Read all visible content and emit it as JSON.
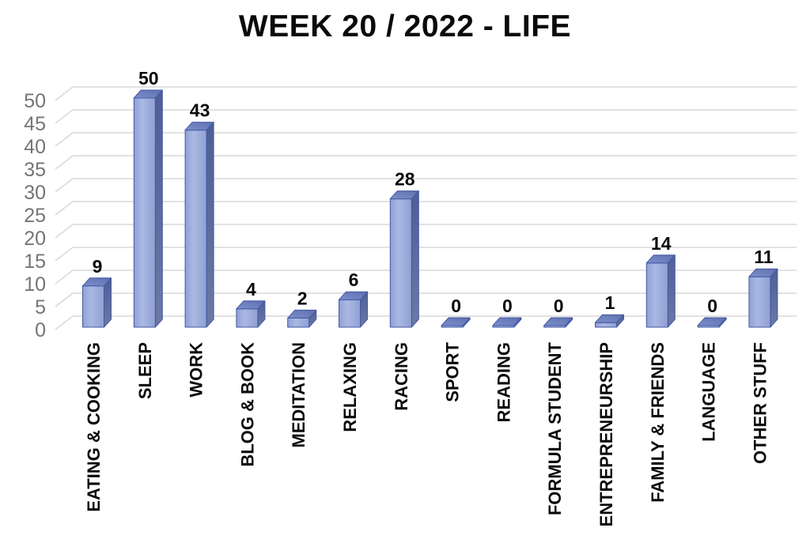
{
  "chart_data": {
    "type": "bar",
    "style": "3d-column",
    "title": "WEEK 20 / 2022 - LIFE",
    "categories": [
      "EATING & COOKING",
      "SLEEP",
      "WORK",
      "BLOG & BOOK",
      "MEDITATION",
      "RELAXING",
      "RACING",
      "SPORT",
      "READING",
      "FORMULA STUDENT",
      "ENTREPRENEURSHIP",
      "FAMILY & FRIENDS",
      "LANGUAGE",
      "OTHER STUFF"
    ],
    "values": [
      9,
      50,
      43,
      4,
      2,
      6,
      28,
      0,
      0,
      0,
      1,
      14,
      0,
      11
    ],
    "yticks": [
      0,
      5,
      10,
      15,
      20,
      25,
      30,
      35,
      40,
      45,
      50
    ],
    "ylim": [
      0,
      50
    ],
    "xlabel": "",
    "ylabel": "",
    "legend": "none",
    "grid": "horizontal-3d-backwall",
    "data_labels": "above-bars",
    "category_label_rotation": -90,
    "colors": {
      "background": "#FFFFFF",
      "title_text": "#0A0A0A",
      "value_label_text": "#0A0A0A",
      "category_label_text": "#0A0A0A",
      "tick_label_text": "#757575",
      "gridline": "#D9D9D9",
      "bar_front_edge": "#8FA0D3",
      "bar_front_center": "#AAB8E3",
      "bar_side_top": "#4E5E97",
      "bar_side_bottom": "#6C79A4",
      "bar_top_front": "#7E90CB",
      "bar_top_back": "#5D6FAE",
      "bar_outline": "#4459A5"
    }
  }
}
